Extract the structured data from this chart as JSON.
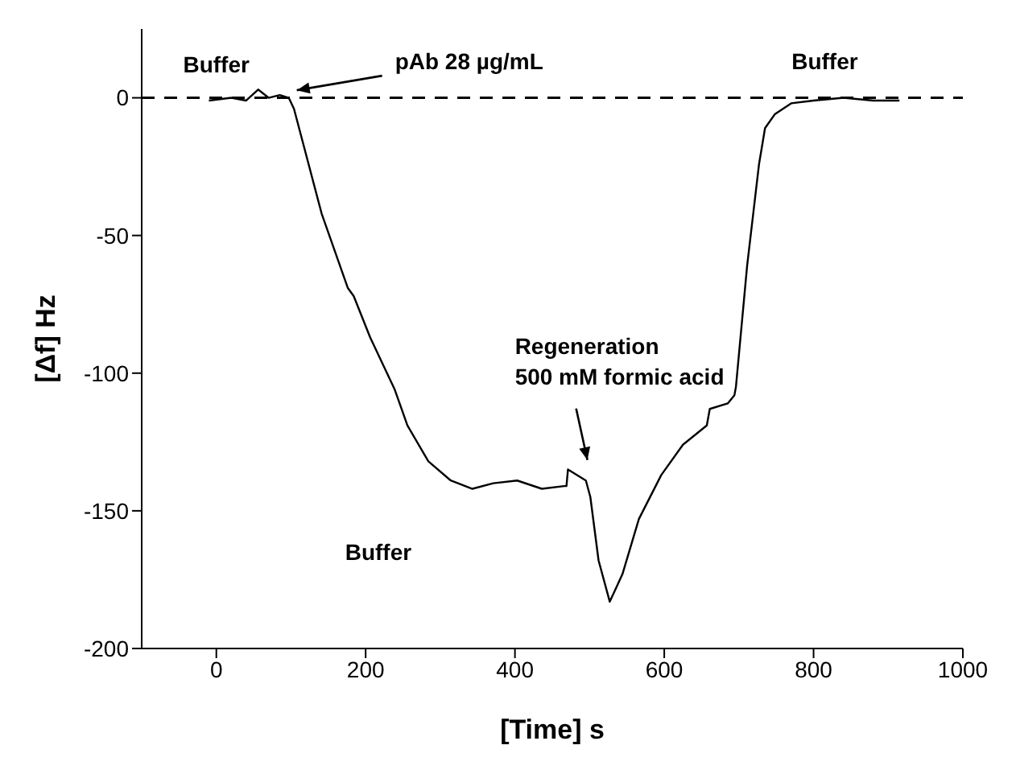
{
  "chart_data": {
    "type": "line",
    "xlabel": "[Time] s",
    "ylabel": "[Δf] Hz",
    "xlim": [
      -100,
      1000
    ],
    "xticks": [
      0,
      200,
      400,
      600,
      800,
      1000
    ],
    "ylim": [
      -200,
      25
    ],
    "yticks": [
      -200,
      -150,
      -100,
      -50,
      0
    ],
    "marker": "none",
    "line_style": "solid",
    "series": [
      {
        "color": "#000000",
        "x": [
          -10,
          20,
          40,
          56,
          70,
          85,
          97,
          104,
          141,
          176,
          184,
          206,
          239,
          256,
          284,
          314,
          343,
          371,
          403,
          436,
          466,
          469,
          471,
          495,
          501,
          512,
          527,
          544,
          566,
          596,
          625,
          657,
          661,
          685,
          694,
          696,
          711,
          727,
          735,
          748,
          770,
          800,
          840,
          880,
          915
        ],
        "values": [
          -1,
          0,
          -1,
          3,
          0,
          1,
          0,
          -4,
          -42,
          -69,
          -72,
          -87,
          -106,
          -119,
          -132,
          -139,
          -142,
          -140,
          -139,
          -142,
          -141,
          -141,
          -135,
          -139,
          -145,
          -168,
          -183,
          -173,
          -153,
          -137,
          -126,
          -119,
          -113,
          -111,
          -108,
          -105,
          -61,
          -24,
          -11,
          -6,
          -2,
          -1,
          0,
          -1,
          -1
        ]
      }
    ],
    "ref_lines": [
      {
        "axis": "y",
        "value": 0,
        "line_style": "dashed",
        "color": "#000000"
      }
    ],
    "annotations": [
      {
        "text": "Buffer",
        "x": 0,
        "y": 0
      },
      {
        "text": "pAb 28 µg/mL",
        "x": 97,
        "y": 1
      },
      {
        "text": "Buffer",
        "x": 815,
        "y": 0
      },
      "Regeneration\n500 mM formic acid",
      "Buffer"
    ]
  }
}
